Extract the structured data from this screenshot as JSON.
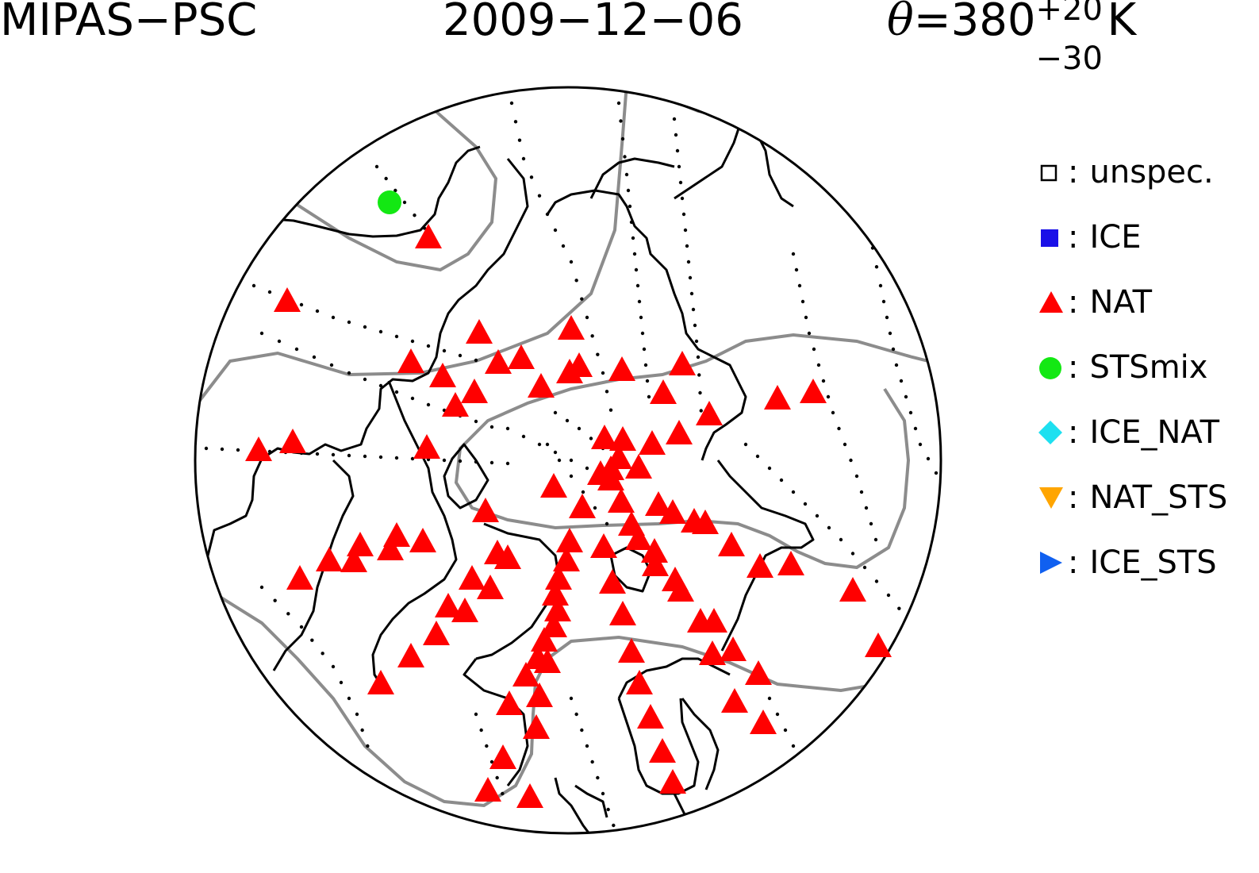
{
  "title": {
    "instrument": "MIPAS−PSC",
    "date": "2009−12−06",
    "theta_symbol": "θ",
    "theta_value": "=380",
    "theta_sup": "+20",
    "theta_sub": "−30",
    "theta_unit": "K"
  },
  "legend": [
    {
      "symbol": ":",
      "label": "unspec.",
      "marker": "square-open",
      "color": "#000000"
    },
    {
      "symbol": ":",
      "label": "ICE",
      "marker": "square",
      "color": "#1a10e8"
    },
    {
      "symbol": ":",
      "label": "NAT",
      "marker": "triangle-up",
      "color": "#ff0000"
    },
    {
      "symbol": ":",
      "label": "STSmix",
      "marker": "circle",
      "color": "#13e813"
    },
    {
      "symbol": ":",
      "label": "ICE_NAT",
      "marker": "diamond",
      "color": "#1ee0f0"
    },
    {
      "symbol": ":",
      "label": "NAT_STS",
      "marker": "triangle-down",
      "color": "#ffa500"
    },
    {
      "symbol": ":",
      "label": "ICE_STS",
      "marker": "triangle-right",
      "color": "#1060f0"
    }
  ],
  "map": {
    "projection": "north polar stereographic",
    "contour_color": "#8c8c8c",
    "coastline_color": "#000000",
    "nat_count": 97,
    "stsmix_count": 1
  }
}
